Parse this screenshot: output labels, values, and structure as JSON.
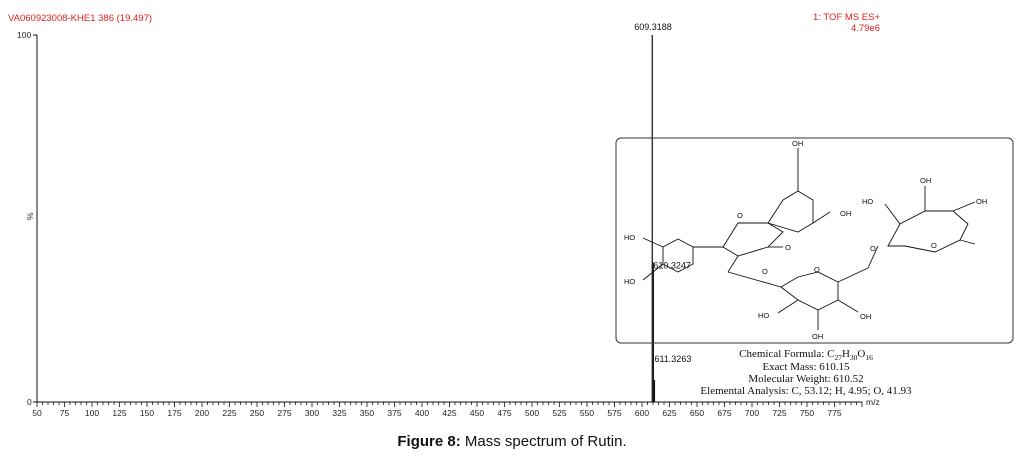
{
  "header": {
    "sample_id": "VA060923008-KHE1 386 (19.497)",
    "mode_label": "1: TOF MS ES+",
    "intensity": "4.79e6"
  },
  "chart_data": {
    "type": "bar",
    "xlabel": "m/z",
    "ylabel": "%",
    "xlim": [
      50,
      800
    ],
    "ylim": [
      0,
      100
    ],
    "x_ticks": [
      50,
      75,
      100,
      125,
      150,
      175,
      200,
      225,
      250,
      275,
      300,
      325,
      350,
      375,
      400,
      425,
      450,
      475,
      500,
      525,
      550,
      575,
      600,
      625,
      650,
      675,
      700,
      725,
      750,
      775
    ],
    "y_ticks": [
      "0",
      "100"
    ],
    "peaks": [
      {
        "mz": 609.3188,
        "rel": 100,
        "label": "609.3188"
      },
      {
        "mz": 610.3247,
        "rel": 38,
        "label": "610.3247"
      },
      {
        "mz": 611.3263,
        "rel": 6,
        "label": "611.3263"
      }
    ]
  },
  "structure": {
    "groups": {
      "oh_top": "OH",
      "oh_5": "OH",
      "carbonyl": "O",
      "ring_o": "O",
      "ho_3p": "HO",
      "ho_4p": "HO",
      "glc_o": "O",
      "glc_ring_o": "O",
      "glc_ho": "HO",
      "glc_oh_bottom": "OH",
      "glc_oh_right": "OH",
      "rha_ho": "HO",
      "rha_oh_top": "OH",
      "rha_oh_right": "OH",
      "rha_ring_o": "O",
      "link_o": "O"
    },
    "formula_label": "Chemical Formula: C",
    "formula_c": "27",
    "formula_h": "30",
    "formula_o": "16",
    "exact_mass": "Exact Mass: 610.15",
    "molecular_weight": "Molecular Weight: 610.52",
    "elemental_analysis": "Elemental Analysis: C, 53.12; H, 4.95; O, 41.93"
  },
  "caption": {
    "label": "Figure 8:",
    "text": " Mass spectrum of Rutin."
  }
}
